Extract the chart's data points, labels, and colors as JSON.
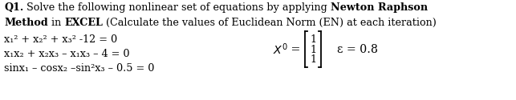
{
  "bg_color": "#ffffff",
  "text_color": "#000000",
  "font_family": "serif",
  "title_fontsize": 9.2,
  "eq_fontsize": 9.2,
  "line1_parts": [
    {
      "text": "Q1.",
      "bold": true
    },
    {
      "text": " Solve the following nonlinear set of equations by applying ",
      "bold": false
    },
    {
      "text": "Newton Raphson",
      "bold": true
    }
  ],
  "line2_parts": [
    {
      "text": "Method",
      "bold": true
    },
    {
      "text": " in ",
      "bold": false
    },
    {
      "text": "EXCEL",
      "bold": true
    },
    {
      "text": " (Calculate the values of Euclidean Norm (EN) at each iteration)",
      "bold": false
    }
  ],
  "eq1": "x₁² + x₂² + x₃² -12 = 0",
  "eq2": "x₁x₂ + x₂x₃ – x₁x₃ – 4 = 0",
  "eq3": "sinx₁ – cosx₂ –sin²x₃ – 0.5 = 0",
  "vector_vals": [
    "1",
    "1",
    "1"
  ],
  "epsilon_text": "ε = 0.8",
  "x0_text": "X",
  "x0_sup": "0",
  "eq_sign": " = "
}
